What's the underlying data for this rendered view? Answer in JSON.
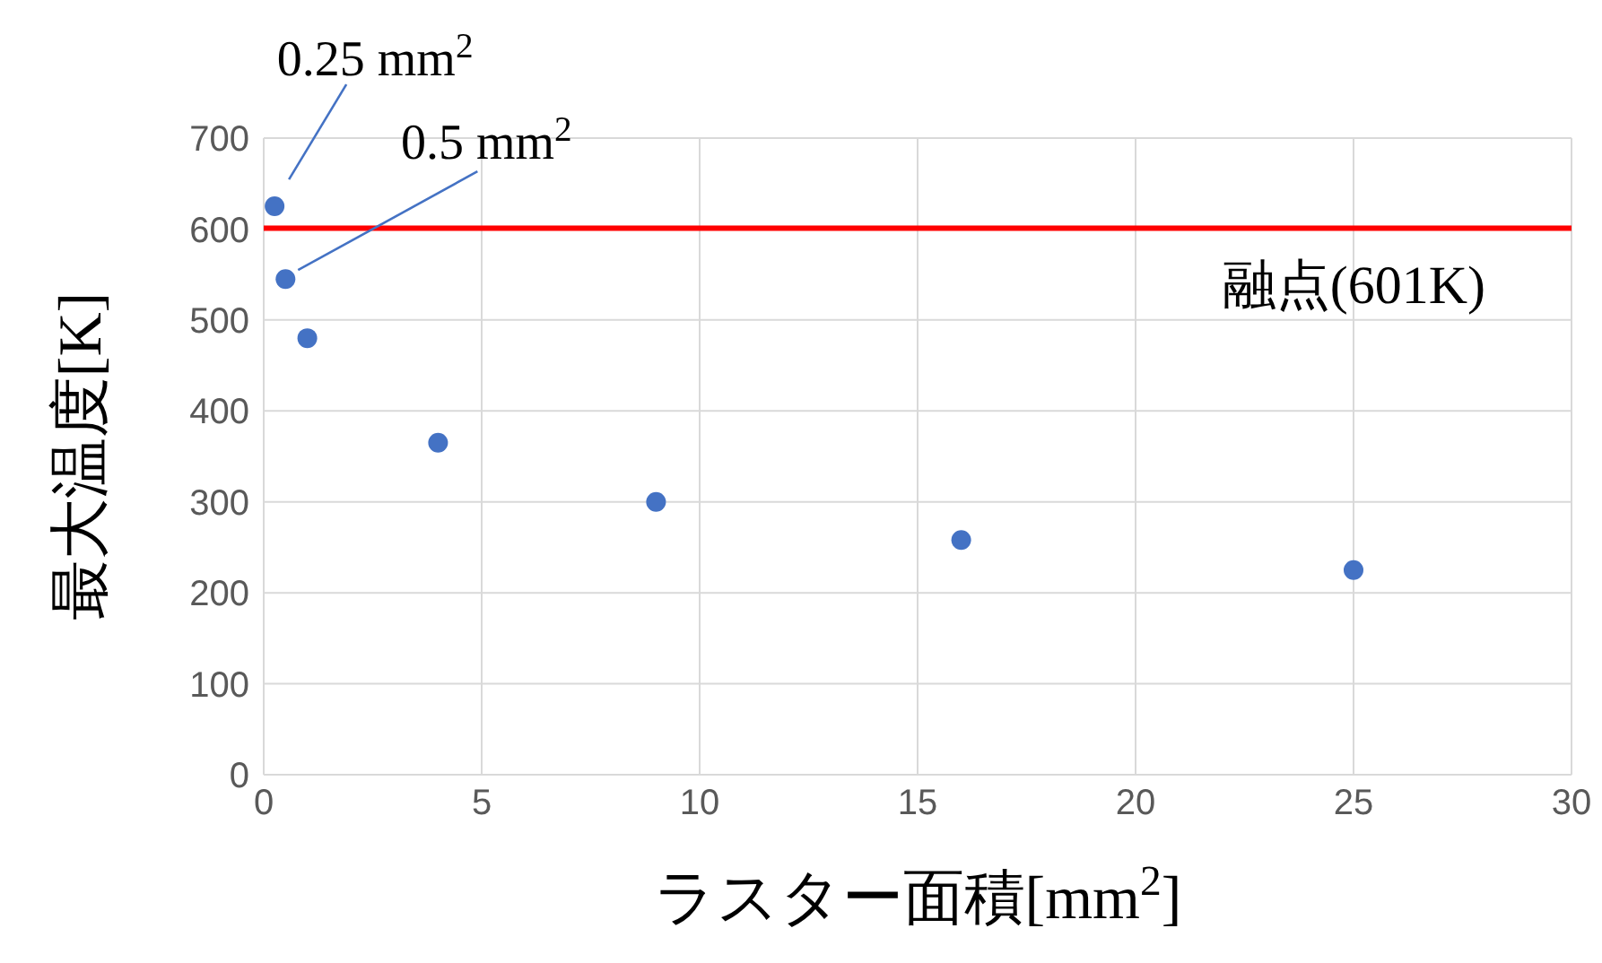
{
  "chart_data": {
    "type": "scatter",
    "xlabel": "ラスター面積[mm$^{2}$]",
    "ylabel": "最大温度[K]",
    "x": [
      0.25,
      0.5,
      1,
      4,
      9,
      16,
      25
    ],
    "series": [
      {
        "color": "#4472c4",
        "values": [
          625,
          545,
          480,
          365,
          300,
          258,
          225
        ]
      }
    ],
    "xlim": [
      0,
      30
    ],
    "xticks": [
      0,
      5,
      10,
      15,
      20,
      25,
      30
    ],
    "ylim": [
      0,
      700
    ],
    "yticks": [
      0,
      100,
      200,
      300,
      400,
      500,
      600,
      700
    ],
    "grid": true,
    "marker": "circle",
    "ref_lines": [
      {
        "axis": "y",
        "value": 601,
        "label": "融点(601K)",
        "color": "#ff0000",
        "line_style": "solid"
      }
    ],
    "annotations": [
      {
        "text": "0.25 mm$^{2}$",
        "x": 0.25,
        "y": 625
      },
      {
        "text": "0.5 mm$^{2}$",
        "x": 0.5,
        "y": 545
      }
    ]
  }
}
